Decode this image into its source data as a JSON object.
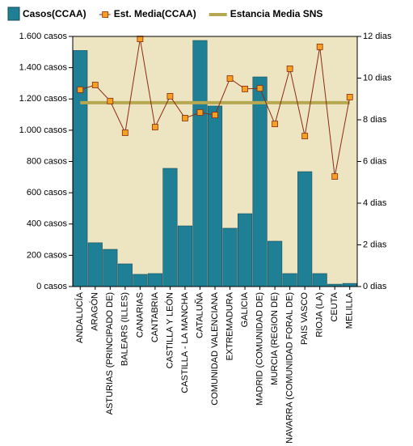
{
  "chart_data": {
    "type": "bar_line",
    "categories": [
      "ANDALUCÍA",
      "ARAGÓN",
      "ASTURIAS (PRINCIPADO DE)",
      "BALEARS (ILLES)",
      "CANARIAS",
      "CANTABRIA",
      "CASTILLA Y LEÓN",
      "CASTILLA - LA MANCHA",
      "CATALUÑA",
      "COMUNIDAD VALENCIANA",
      "EXTREMADURA",
      "GALICIA",
      "MADRID (COMUNIDAD DE)",
      "MURCIA (REGION DE)",
      "NAVARRA (COMUNIDAD FORAL DE)",
      "PAIS VASCO",
      "RIOJA (LA)",
      "CEUTA",
      "MELILLA"
    ],
    "series": [
      {
        "name": "Casos(CCAA)",
        "type": "bar",
        "color": "#1f7f95",
        "values": [
          1510,
          280,
          238,
          145,
          78,
          83,
          756,
          388,
          1574,
          1155,
          373,
          466,
          1341,
          290,
          83,
          735,
          83,
          15,
          20
        ]
      },
      {
        "name": "Est. Media(CCAA)",
        "type": "line",
        "axis": "y2",
        "color": "#8b2a10",
        "marker_color": "#f5a020",
        "values": [
          9.44,
          9.67,
          8.9,
          7.38,
          11.88,
          7.65,
          9.13,
          8.08,
          8.35,
          8.23,
          9.98,
          9.48,
          9.51,
          7.8,
          10.45,
          7.22,
          11.5,
          5.28,
          9.09
        ]
      },
      {
        "name": "Estancia Media SNS",
        "type": "hline",
        "axis": "y2",
        "color": "#b5a850",
        "value": 8.82
      }
    ],
    "ylim": [
      0,
      1600
    ],
    "yticks": [
      {
        "value": 0,
        "label": "0 casos"
      },
      {
        "value": 200,
        "label": "200 casos"
      },
      {
        "value": 400,
        "label": "400 casos"
      },
      {
        "value": 600,
        "label": "600 casos"
      },
      {
        "value": 800,
        "label": "800 casos"
      },
      {
        "value": 1000,
        "label": "1.000 casos"
      },
      {
        "value": 1200,
        "label": "1.200 casos"
      },
      {
        "value": 1400,
        "label": "1.400 casos"
      },
      {
        "value": 1600,
        "label": "1.600 casos"
      }
    ],
    "y2lim": [
      0,
      12
    ],
    "y2ticks": [
      {
        "value": 0,
        "label": "0 dias"
      },
      {
        "value": 2,
        "label": "2 dias"
      },
      {
        "value": 4,
        "label": "4 dias"
      },
      {
        "value": 6,
        "label": "6 dias"
      },
      {
        "value": 8,
        "label": "8 dias"
      },
      {
        "value": 10,
        "label": "10 dias"
      },
      {
        "value": 12,
        "label": "12 dias"
      }
    ],
    "plot_background": "#ede4c2"
  }
}
